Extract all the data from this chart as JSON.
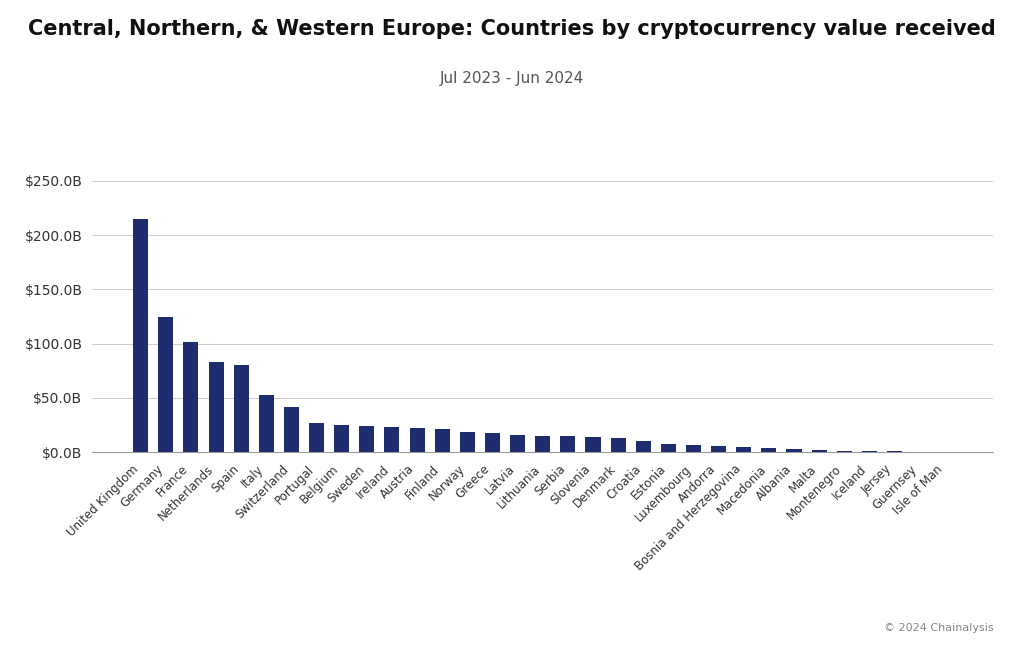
{
  "title": "Central, Northern, & Western Europe: Countries by cryptocurrency value received",
  "subtitle": "Jul 2023 - Jun 2024",
  "bar_color": "#1f2d6e",
  "background_color": "#ffffff",
  "watermark": "© 2024 Chainalysis",
  "categories": [
    "United Kingdom",
    "Germany",
    "France",
    "Netherlands",
    "Spain",
    "Italy",
    "Switzerland",
    "Portugal",
    "Belgium",
    "Sweden",
    "Ireland",
    "Austria",
    "Finland",
    "Norway",
    "Greece",
    "Latvia",
    "Lithuania",
    "Serbia",
    "Slovenia",
    "Denmark",
    "Croatia",
    "Estonia",
    "Luxembourg",
    "Andorra",
    "Bosnia and Herzegovina",
    "Macedonia",
    "Albania",
    "Malta",
    "Montenegro",
    "Iceland",
    "Jersey",
    "Guernsey",
    "Isle of Man"
  ],
  "values": [
    215,
    125,
    102,
    83,
    80,
    53,
    42,
    27,
    25,
    24,
    23,
    22,
    21,
    19,
    18,
    16,
    15,
    15,
    14,
    13,
    10,
    8,
    7,
    6,
    5,
    4,
    3,
    2,
    1.5,
    1,
    0.8,
    0.5,
    0.3
  ],
  "ylim": [
    0,
    250
  ],
  "yticks": [
    0,
    50,
    100,
    150,
    200,
    250
  ],
  "ytick_labels": [
    "$0.0B",
    "$50.0B",
    "$100.0B",
    "$150.0B",
    "$200.0B",
    "$250.0B"
  ],
  "title_fontsize": 15,
  "subtitle_fontsize": 11
}
